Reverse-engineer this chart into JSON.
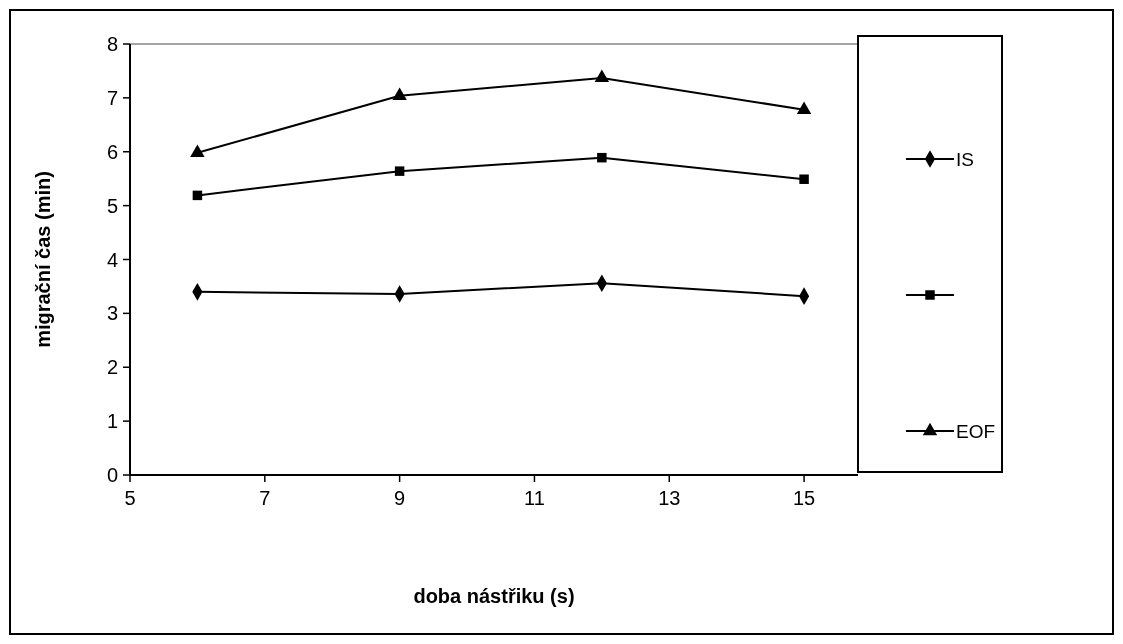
{
  "chart_data": {
    "type": "line",
    "xlabel": "doba nástřiku (s)",
    "ylabel": "migrační čas (min)",
    "x": [
      6,
      9,
      12,
      15
    ],
    "series": [
      {
        "name": "IS",
        "color": "#000000",
        "marker": "diamond",
        "values": [
          3.4,
          3.36,
          3.56,
          3.32
        ]
      },
      {
        "color": "#000000",
        "marker": "square",
        "values": [
          5.19,
          5.64,
          5.89,
          5.49
        ]
      },
      {
        "name": "EOF",
        "color": "#000000",
        "marker": "triangle",
        "values": [
          5.98,
          7.04,
          7.37,
          6.78
        ]
      }
    ],
    "xlim": [
      5,
      15.8
    ],
    "xticks": [
      5,
      7,
      9,
      11,
      13,
      15
    ],
    "ylim": [
      0,
      8
    ],
    "yticks": [
      0,
      1,
      2,
      3,
      4,
      5,
      6,
      7,
      8
    ],
    "legend": "right",
    "grid": false,
    "line_style": "solid"
  }
}
